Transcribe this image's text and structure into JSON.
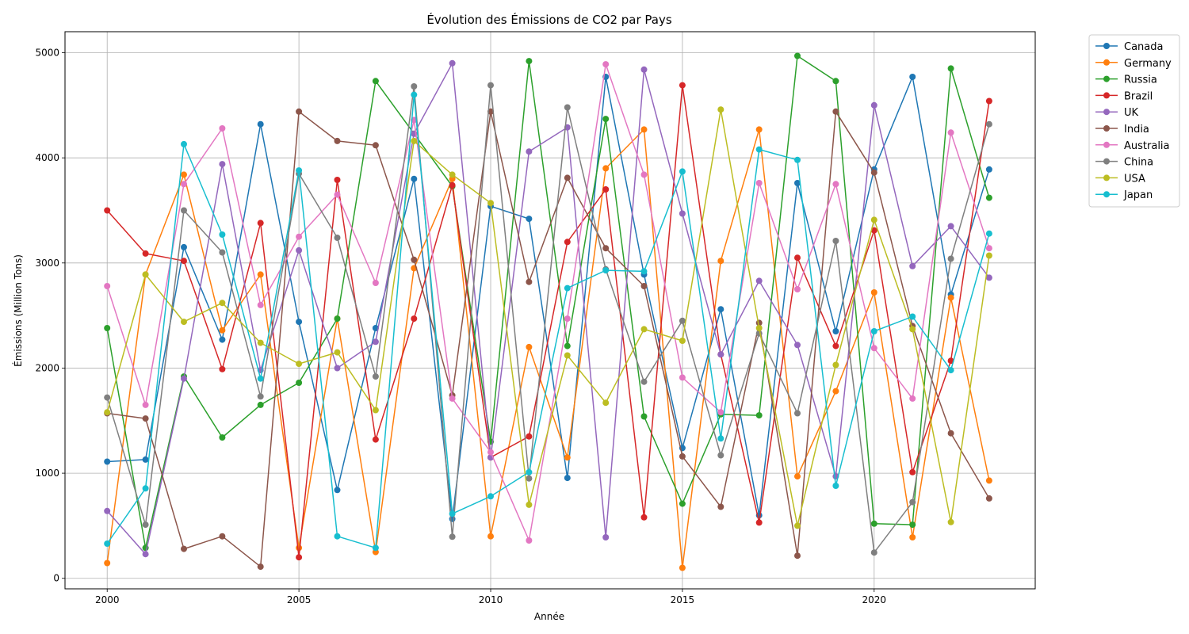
{
  "chart_data": {
    "type": "line",
    "title": "Évolution des Émissions de CO2 par Pays",
    "xlabel": "Année",
    "ylabel": "Émissions (Million Tons)",
    "xlim": [
      1998.9,
      2024.2
    ],
    "ylim": [
      -100,
      5200
    ],
    "xticks": [
      2000,
      2005,
      2010,
      2015,
      2020
    ],
    "yticks": [
      0,
      1000,
      2000,
      3000,
      4000,
      5000
    ],
    "grid": true,
    "legend_position": "outside-top-right",
    "series": [
      {
        "name": "Canada",
        "color": "#1f77b4",
        "points": [
          [
            2000,
            1110
          ],
          [
            2001,
            1130
          ],
          [
            2002,
            3150
          ],
          [
            2003,
            2270
          ],
          [
            2004,
            4320
          ],
          [
            2005,
            2440
          ],
          [
            2006,
            840
          ],
          [
            2007,
            2380
          ],
          [
            2008,
            3800
          ],
          [
            2009,
            565
          ],
          [
            2010,
            3540
          ],
          [
            2011,
            3420
          ],
          [
            2012,
            955
          ],
          [
            2013,
            4770
          ],
          [
            2014,
            2890
          ],
          [
            2015,
            1240
          ],
          [
            2016,
            2560
          ],
          [
            2017,
            600
          ],
          [
            2018,
            3760
          ],
          [
            2019,
            2350
          ],
          [
            2020,
            3890
          ],
          [
            2021,
            4770
          ],
          [
            2022,
            2700
          ],
          [
            2023,
            3890
          ]
        ]
      },
      {
        "name": "Germany",
        "color": "#ff7f0e",
        "points": [
          [
            2000,
            145
          ],
          [
            2001,
            2890
          ],
          [
            2002,
            3840
          ],
          [
            2003,
            2360
          ],
          [
            2004,
            2890
          ],
          [
            2005,
            290
          ],
          [
            2006,
            2470
          ],
          [
            2007,
            250
          ],
          [
            2008,
            2950
          ],
          [
            2009,
            3800
          ],
          [
            2010,
            400
          ],
          [
            2011,
            2200
          ],
          [
            2012,
            1150
          ],
          [
            2013,
            3900
          ],
          [
            2014,
            4270
          ],
          [
            2015,
            100
          ],
          [
            2016,
            3020
          ],
          [
            2017,
            4270
          ],
          [
            2018,
            970
          ],
          [
            2019,
            1780
          ],
          [
            2020,
            2720
          ],
          [
            2021,
            390
          ],
          [
            2022,
            2670
          ],
          [
            2023,
            930
          ]
        ]
      },
      {
        "name": "Russia",
        "color": "#2ca02c",
        "points": [
          [
            2000,
            2380
          ],
          [
            2001,
            290
          ],
          [
            2002,
            1920
          ],
          [
            2003,
            1340
          ],
          [
            2004,
            1650
          ],
          [
            2005,
            1860
          ],
          [
            2006,
            2470
          ],
          [
            2007,
            4730
          ],
          [
            2008,
            4230
          ],
          [
            2009,
            3730
          ],
          [
            2010,
            1300
          ],
          [
            2011,
            4920
          ],
          [
            2012,
            2210
          ],
          [
            2013,
            4370
          ],
          [
            2014,
            1540
          ],
          [
            2015,
            710
          ],
          [
            2016,
            1560
          ],
          [
            2017,
            1550
          ],
          [
            2018,
            4970
          ],
          [
            2019,
            4730
          ],
          [
            2020,
            520
          ],
          [
            2021,
            510
          ],
          [
            2022,
            4850
          ],
          [
            2023,
            3620
          ]
        ]
      },
      {
        "name": "Brazil",
        "color": "#d62728",
        "points": [
          [
            2000,
            3500
          ],
          [
            2001,
            3090
          ],
          [
            2002,
            3020
          ],
          [
            2003,
            1990
          ],
          [
            2004,
            3380
          ],
          [
            2005,
            200
          ],
          [
            2006,
            3790
          ],
          [
            2007,
            1320
          ],
          [
            2008,
            2470
          ],
          [
            2009,
            3740
          ],
          [
            2010,
            1150
          ],
          [
            2011,
            1350
          ],
          [
            2012,
            3200
          ],
          [
            2013,
            3700
          ],
          [
            2014,
            580
          ],
          [
            2015,
            4690
          ],
          [
            2016,
            2130
          ],
          [
            2017,
            530
          ],
          [
            2018,
            3050
          ],
          [
            2019,
            2210
          ],
          [
            2020,
            3310
          ],
          [
            2021,
            1010
          ],
          [
            2022,
            2070
          ],
          [
            2023,
            4540
          ]
        ]
      },
      {
        "name": "UK",
        "color": "#9467bd",
        "points": [
          [
            2000,
            640
          ],
          [
            2001,
            230
          ],
          [
            2002,
            1900
          ],
          [
            2003,
            3940
          ],
          [
            2004,
            1980
          ],
          [
            2005,
            3120
          ],
          [
            2006,
            2000
          ],
          [
            2007,
            2250
          ],
          [
            2008,
            4230
          ],
          [
            2009,
            4900
          ],
          [
            2010,
            1150
          ],
          [
            2011,
            4060
          ],
          [
            2012,
            4290
          ],
          [
            2013,
            390
          ],
          [
            2014,
            4840
          ],
          [
            2015,
            3470
          ],
          [
            2016,
            2130
          ],
          [
            2017,
            2830
          ],
          [
            2018,
            2220
          ],
          [
            2019,
            970
          ],
          [
            2020,
            4500
          ],
          [
            2021,
            2970
          ],
          [
            2022,
            3350
          ],
          [
            2023,
            2860
          ]
        ]
      },
      {
        "name": "India",
        "color": "#8c564b",
        "points": [
          [
            2000,
            1570
          ],
          [
            2001,
            1520
          ],
          [
            2002,
            280
          ],
          [
            2003,
            400
          ],
          [
            2004,
            110
          ],
          [
            2005,
            4440
          ],
          [
            2006,
            4160
          ],
          [
            2007,
            4120
          ],
          [
            2008,
            3030
          ],
          [
            2009,
            1740
          ],
          [
            2010,
            4440
          ],
          [
            2011,
            2820
          ],
          [
            2012,
            3810
          ],
          [
            2013,
            3140
          ],
          [
            2014,
            2780
          ],
          [
            2015,
            1160
          ],
          [
            2016,
            680
          ],
          [
            2017,
            2430
          ],
          [
            2018,
            215
          ],
          [
            2019,
            4440
          ],
          [
            2020,
            3860
          ],
          [
            2021,
            2400
          ],
          [
            2022,
            1380
          ],
          [
            2023,
            760
          ]
        ]
      },
      {
        "name": "Australia",
        "color": "#e377c2",
        "points": [
          [
            2000,
            2780
          ],
          [
            2001,
            1650
          ],
          [
            2002,
            3750
          ],
          [
            2003,
            4280
          ],
          [
            2004,
            2600
          ],
          [
            2005,
            3250
          ],
          [
            2006,
            3650
          ],
          [
            2007,
            2810
          ],
          [
            2008,
            4360
          ],
          [
            2009,
            1710
          ],
          [
            2010,
            1200
          ],
          [
            2011,
            360
          ],
          [
            2012,
            2470
          ],
          [
            2013,
            4890
          ],
          [
            2014,
            3840
          ],
          [
            2015,
            1910
          ],
          [
            2016,
            1580
          ],
          [
            2017,
            3760
          ],
          [
            2018,
            2750
          ],
          [
            2019,
            3750
          ],
          [
            2020,
            2190
          ],
          [
            2021,
            1710
          ],
          [
            2022,
            4240
          ],
          [
            2023,
            3140
          ]
        ]
      },
      {
        "name": "China",
        "color": "#7f7f7f",
        "points": [
          [
            2000,
            1720
          ],
          [
            2001,
            510
          ],
          [
            2002,
            3500
          ],
          [
            2003,
            3100
          ],
          [
            2004,
            1730
          ],
          [
            2005,
            3850
          ],
          [
            2006,
            3240
          ],
          [
            2007,
            1920
          ],
          [
            2008,
            4680
          ],
          [
            2009,
            395
          ],
          [
            2010,
            4690
          ],
          [
            2011,
            950
          ],
          [
            2012,
            4480
          ],
          [
            2013,
            2940
          ],
          [
            2014,
            1870
          ],
          [
            2015,
            2450
          ],
          [
            2016,
            1170
          ],
          [
            2017,
            2330
          ],
          [
            2018,
            1570
          ],
          [
            2019,
            3210
          ],
          [
            2020,
            245
          ],
          [
            2021,
            725
          ],
          [
            2022,
            3040
          ],
          [
            2023,
            4320
          ]
        ]
      },
      {
        "name": "USA",
        "color": "#bcbd22",
        "points": [
          [
            2000,
            1580
          ],
          [
            2001,
            2890
          ],
          [
            2002,
            2440
          ],
          [
            2003,
            2620
          ],
          [
            2004,
            2240
          ],
          [
            2005,
            2040
          ],
          [
            2006,
            2150
          ],
          [
            2007,
            1600
          ],
          [
            2008,
            4160
          ],
          [
            2009,
            3840
          ],
          [
            2010,
            3570
          ],
          [
            2011,
            700
          ],
          [
            2012,
            2120
          ],
          [
            2013,
            1670
          ],
          [
            2014,
            2370
          ],
          [
            2015,
            2260
          ],
          [
            2016,
            4460
          ],
          [
            2017,
            2380
          ],
          [
            2018,
            500
          ],
          [
            2019,
            2030
          ],
          [
            2020,
            3410
          ],
          [
            2021,
            2370
          ],
          [
            2022,
            535
          ],
          [
            2023,
            3070
          ]
        ]
      },
      {
        "name": "Japan",
        "color": "#17becf",
        "points": [
          [
            2000,
            330
          ],
          [
            2001,
            855
          ],
          [
            2002,
            4130
          ],
          [
            2003,
            3270
          ],
          [
            2004,
            1900
          ],
          [
            2005,
            3880
          ],
          [
            2006,
            400
          ],
          [
            2007,
            290
          ],
          [
            2008,
            4600
          ],
          [
            2009,
            615
          ],
          [
            2010,
            780
          ],
          [
            2011,
            1010
          ],
          [
            2012,
            2760
          ],
          [
            2013,
            2930
          ],
          [
            2014,
            2920
          ],
          [
            2015,
            3870
          ],
          [
            2016,
            1330
          ],
          [
            2017,
            4080
          ],
          [
            2018,
            3980
          ],
          [
            2019,
            880
          ],
          [
            2020,
            2350
          ],
          [
            2021,
            2490
          ],
          [
            2022,
            1980
          ],
          [
            2023,
            3280
          ]
        ]
      }
    ]
  }
}
